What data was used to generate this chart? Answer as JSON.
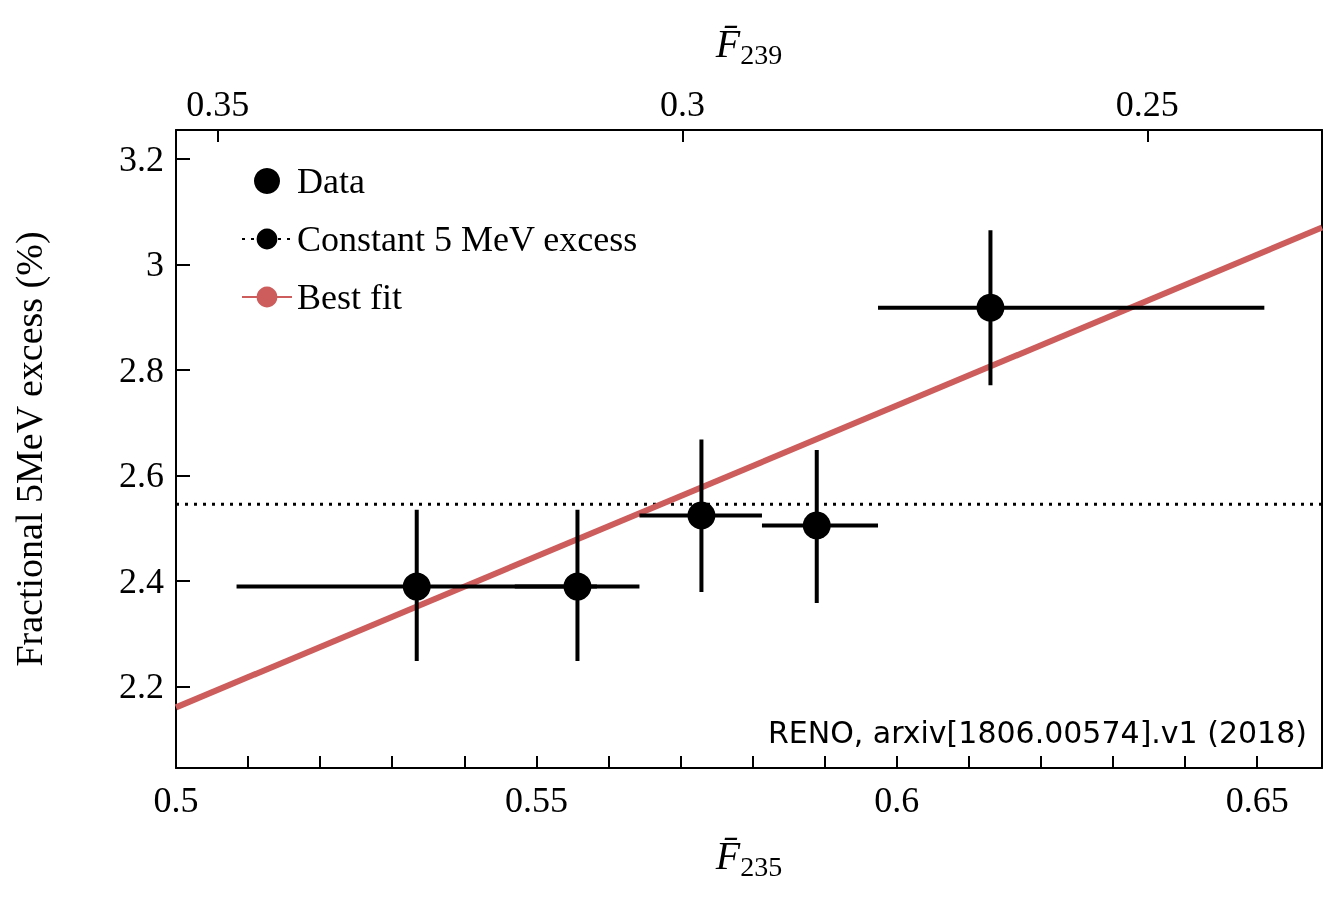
{
  "chart_data": {
    "type": "scatter",
    "xlabel": "F̄$_{235}$",
    "x2label": "F̄$_{239}$",
    "ylabel": "Fractional 5MeV excess (%)",
    "xlim": [
      0.5,
      0.659
    ],
    "xticks": [
      0.5,
      {
        "value": 0.51,
        "label": null
      },
      {
        "value": 0.52,
        "label": null
      },
      {
        "value": 0.53,
        "label": null
      },
      {
        "value": 0.54,
        "label": null
      },
      0.55,
      {
        "value": 0.56,
        "label": null
      },
      {
        "value": 0.57,
        "label": null
      },
      {
        "value": 0.58,
        "label": null
      },
      {
        "value": 0.59,
        "label": null
      },
      0.6,
      {
        "value": 0.61,
        "label": null
      },
      {
        "value": 0.62,
        "label": null
      },
      {
        "value": 0.63,
        "label": null
      },
      {
        "value": 0.64,
        "label": null
      },
      0.65
    ],
    "x2lim": [
      0.3545,
      0.2312
    ],
    "x2ticks": [
      0.35,
      0.3,
      0.25
    ],
    "ylim": [
      2.045,
      3.255
    ],
    "yticks": [
      2.2,
      2.4,
      2.6,
      2.8,
      3,
      3.2
    ],
    "grid": false,
    "legend": "top left",
    "annotations": [
      "RENO, arxiv[1806.00574].v1 (2018)"
    ],
    "series": [
      {
        "name": "Data",
        "type": "scatter",
        "color": "#000000",
        "marker": "circle",
        "x": [
          0.5334,
          0.5557,
          0.5729,
          0.5889,
          0.613
        ],
        "values": [
          2.389,
          2.389,
          2.524,
          2.505,
          2.918
        ],
        "errors": [
          [
            2.248,
            2.535
          ],
          [
            2.248,
            2.535
          ],
          [
            2.379,
            2.668
          ],
          [
            2.358,
            2.648
          ],
          [
            2.771,
            3.065
          ]
        ],
        "xerrors": [
          [
            0.5084,
            0.5584
          ],
          [
            0.547,
            0.5643
          ],
          [
            0.5643,
            0.5813
          ],
          [
            0.5813,
            0.5974
          ],
          [
            0.5974,
            0.651
          ]
        ]
      },
      {
        "name": "Constant 5 MeV excess",
        "type": "line",
        "color": "#000000",
        "line_style": "dotted",
        "marker": "none",
        "x": [
          0.5,
          0.659
        ],
        "values": [
          2.545,
          2.545
        ]
      },
      {
        "name": "Best fit",
        "type": "line",
        "color": "#cd5c5c",
        "line_style": "solid",
        "marker": "none",
        "x": [
          0.5,
          0.659
        ],
        "values": [
          2.16,
          3.07
        ]
      }
    ]
  }
}
